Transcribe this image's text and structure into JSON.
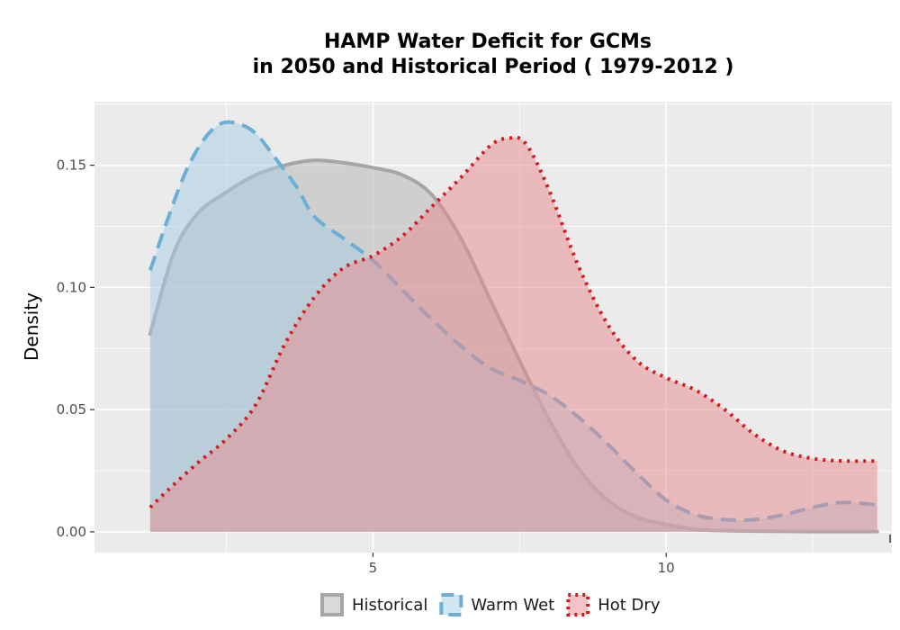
{
  "chart_data": {
    "type": "area",
    "title_line1": "HAMP  Water Deficit for GCMs",
    "title_line2": "in 2050 and Historical Period ( 1979-2012 )",
    "xlabel": "",
    "ylabel": "Density",
    "xlim": [
      0.25,
      13.85
    ],
    "ylim": [
      -0.0085,
      0.176
    ],
    "x_ticks": [
      5,
      10
    ],
    "x_tick_labels": [
      "5",
      "10"
    ],
    "y_ticks": [
      0.0,
      0.05,
      0.1,
      0.15
    ],
    "y_tick_labels": [
      "0.00",
      "0.05",
      "0.10",
      "0.15"
    ],
    "grid": true,
    "legend_position": "bottom",
    "series": [
      {
        "name": "Historical",
        "line_color": "#a6a6a6",
        "fill_color": "#b3b3b3",
        "dash": "solid",
        "x": [
          1.2,
          1.6,
          2.0,
          2.5,
          3.0,
          3.5,
          4.0,
          4.5,
          5.0,
          5.5,
          6.0,
          6.5,
          7.0,
          7.5,
          8.0,
          8.5,
          9.0,
          9.5,
          10.0,
          10.5,
          11.0,
          11.5,
          12.0,
          12.5,
          13.0,
          13.6
        ],
        "y": [
          0.081,
          0.114,
          0.13,
          0.139,
          0.146,
          0.15,
          0.152,
          0.151,
          0.149,
          0.146,
          0.138,
          0.12,
          0.095,
          0.07,
          0.046,
          0.026,
          0.013,
          0.006,
          0.003,
          0.001,
          0.0005,
          0.0003,
          0.0002,
          0.0001,
          0.0001,
          0.0001
        ]
      },
      {
        "name": "Warm Wet",
        "line_color": "#6baed6",
        "fill_color": "#a6cde3",
        "dash": "long",
        "x": [
          1.2,
          1.5,
          1.8,
          2.1,
          2.4,
          2.7,
          3.0,
          3.3,
          3.7,
          4.0,
          4.5,
          5.0,
          5.5,
          6.0,
          6.5,
          7.0,
          7.5,
          8.0,
          8.5,
          9.0,
          9.5,
          10.0,
          10.5,
          11.0,
          11.5,
          12.0,
          12.5,
          13.0,
          13.6
        ],
        "y": [
          0.107,
          0.128,
          0.147,
          0.16,
          0.167,
          0.167,
          0.163,
          0.154,
          0.141,
          0.129,
          0.12,
          0.111,
          0.099,
          0.087,
          0.076,
          0.067,
          0.062,
          0.056,
          0.047,
          0.036,
          0.024,
          0.013,
          0.007,
          0.005,
          0.005,
          0.007,
          0.01,
          0.012,
          0.011
        ]
      },
      {
        "name": "Hot Dry",
        "line_color": "#d7191c",
        "fill_color": "#e8898c",
        "dash": "dotted",
        "x": [
          1.2,
          1.5,
          2.0,
          2.5,
          3.0,
          3.5,
          4.0,
          4.5,
          5.0,
          5.5,
          6.0,
          6.5,
          7.0,
          7.3,
          7.6,
          8.0,
          8.5,
          9.0,
          9.5,
          10.0,
          10.5,
          11.0,
          11.5,
          12.0,
          12.5,
          13.0,
          13.6
        ],
        "y": [
          0.01,
          0.017,
          0.028,
          0.038,
          0.052,
          0.077,
          0.096,
          0.108,
          0.113,
          0.121,
          0.133,
          0.145,
          0.158,
          0.161,
          0.159,
          0.14,
          0.109,
          0.085,
          0.07,
          0.063,
          0.058,
          0.05,
          0.04,
          0.033,
          0.03,
          0.029,
          0.029
        ]
      }
    ]
  }
}
